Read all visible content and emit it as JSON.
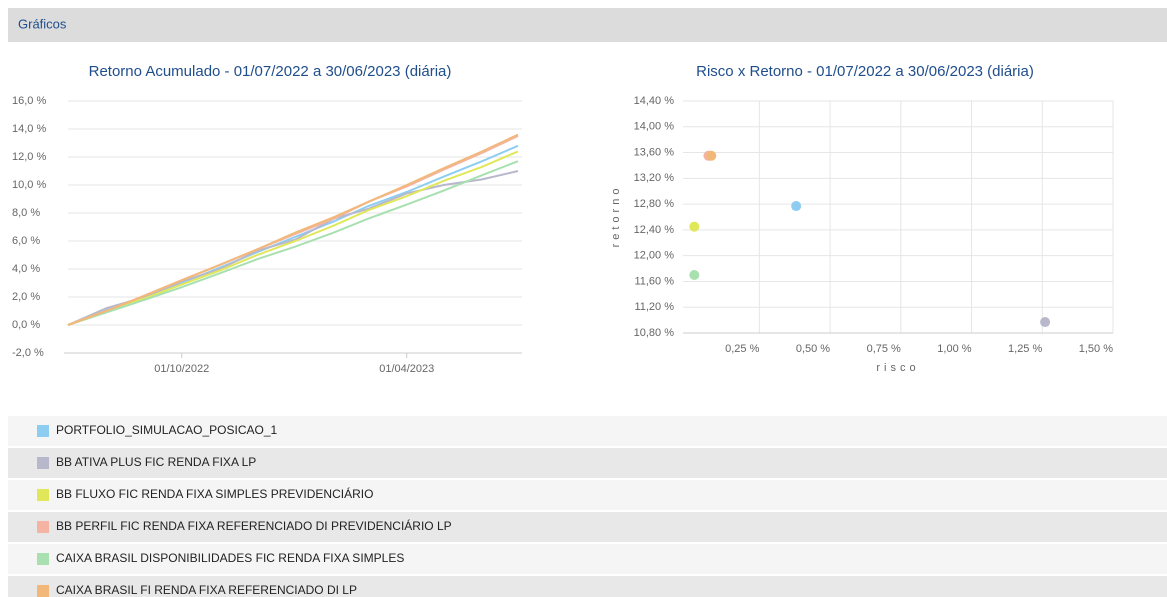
{
  "header": {
    "title": "Gráficos"
  },
  "chart_data": [
    {
      "type": "line",
      "title": "Retorno Acumulado - 01/07/2022 a 30/06/2023 (diária)",
      "x": [
        "01/07/2022",
        "01/08/2022",
        "01/09/2022",
        "01/10/2022",
        "01/11/2022",
        "01/12/2022",
        "01/01/2023",
        "01/02/2023",
        "01/03/2023",
        "01/04/2023",
        "01/05/2023",
        "01/06/2023",
        "30/06/2023"
      ],
      "xlim": [
        "01/07/2022",
        "30/06/2023"
      ],
      "xticks": [
        "01/10/2022",
        "01/04/2023"
      ],
      "ylim": [
        -2,
        16
      ],
      "yticks": [
        {
          "value": -2,
          "label": "-2,0 %"
        },
        {
          "value": 0,
          "label": "0,0 %"
        },
        {
          "value": 2,
          "label": "2,0 %"
        },
        {
          "value": 4,
          "label": "4,0 %"
        },
        {
          "value": 6,
          "label": "6,0 %"
        },
        {
          "value": 8,
          "label": "8,0 %"
        },
        {
          "value": 10,
          "label": "10,0 %"
        },
        {
          "value": 12,
          "label": "12,0 %"
        },
        {
          "value": 14,
          "label": "14,0 %"
        },
        {
          "value": 16,
          "label": "16,0 %"
        }
      ],
      "grid": true,
      "series": [
        {
          "name": "PORTFOLIO_SIMULACAO_POSICAO_1",
          "color": "#8ecdf2",
          "values": [
            0,
            1.1,
            2.0,
            3.0,
            4.1,
            5.2,
            6.3,
            7.4,
            8.5,
            9.5,
            10.6,
            11.7,
            12.8
          ]
        },
        {
          "name": "BB ATIVA PLUS FIC RENDA FIXA LP",
          "color": "#b8b8cc",
          "values": [
            0,
            1.2,
            2.0,
            3.1,
            4.0,
            5.3,
            6.1,
            7.6,
            8.3,
            9.4,
            10.0,
            10.4,
            11.0
          ]
        },
        {
          "name": "BB FLUXO FIC RENDA FIXA SIMPLES PREVIDENCIÁRIO",
          "color": "#e0e85a",
          "values": [
            0,
            1.0,
            1.9,
            2.9,
            3.9,
            5.0,
            6.0,
            7.1,
            8.2,
            9.2,
            10.3,
            11.3,
            12.4
          ]
        },
        {
          "name": "BB PERFIL FIC RENDA FIXA REFERENCIADO DI PREVIDENCIÁRIO LP",
          "color": "#f5b3a3",
          "values": [
            0,
            1.0,
            2.1,
            3.2,
            4.3,
            5.4,
            6.5,
            7.6,
            8.8,
            9.9,
            11.1,
            12.3,
            13.5
          ]
        },
        {
          "name": "CAIXA BRASIL DISPONIBILIDADES FIC RENDA FIXA SIMPLES",
          "color": "#a8e0b0",
          "values": [
            0,
            0.9,
            1.8,
            2.7,
            3.7,
            4.7,
            5.6,
            6.6,
            7.6,
            8.6,
            9.6,
            10.7,
            11.7
          ]
        },
        {
          "name": "CAIXA BRASIL FI RENDA FIXA REFERENCIADO DI LP",
          "color": "#f2b87a",
          "values": [
            0,
            1.0,
            2.1,
            3.2,
            4.3,
            5.4,
            6.6,
            7.7,
            8.8,
            10.0,
            11.2,
            12.4,
            13.6
          ]
        }
      ]
    },
    {
      "type": "scatter",
      "title": "Risco x Retorno - 01/07/2022 a 30/06/2023 (diária)",
      "x_label": "risco",
      "y_label": "retorno",
      "x": [
        0.38,
        1.26,
        0.02,
        0.07,
        0.02,
        0.08
      ],
      "values": [
        12.77,
        10.97,
        12.45,
        13.55,
        11.7,
        13.55
      ],
      "colors": [
        "#8ecdf2",
        "#b8b8cc",
        "#e0e85a",
        "#f5b3a3",
        "#a8e0b0",
        "#f2b87a"
      ],
      "xlim": [
        -0.02,
        1.5
      ],
      "xticks": [
        {
          "value": 0.25,
          "label": "0,25 %"
        },
        {
          "value": 0.5,
          "label": "0,50 %"
        },
        {
          "value": 0.75,
          "label": "0,75 %"
        },
        {
          "value": 1,
          "label": "1,00 %"
        },
        {
          "value": 1.25,
          "label": "1,25 %"
        },
        {
          "value": 1.5,
          "label": "1,50 %"
        }
      ],
      "ylim": [
        10.8,
        14.4
      ],
      "yticks": [
        {
          "value": 10.8,
          "label": "10,80 %"
        },
        {
          "value": 11.2,
          "label": "11,20 %"
        },
        {
          "value": 11.6,
          "label": "11,60 %"
        },
        {
          "value": 12,
          "label": "12,00 %"
        },
        {
          "value": 12.4,
          "label": "12,40 %"
        },
        {
          "value": 12.8,
          "label": "12,80 %"
        },
        {
          "value": 13.2,
          "label": "13,20 %"
        },
        {
          "value": 13.6,
          "label": "13,60 %"
        },
        {
          "value": 14,
          "label": "14,00 %"
        },
        {
          "value": 14.4,
          "label": "14,40 %"
        }
      ],
      "grid": true
    }
  ]
}
